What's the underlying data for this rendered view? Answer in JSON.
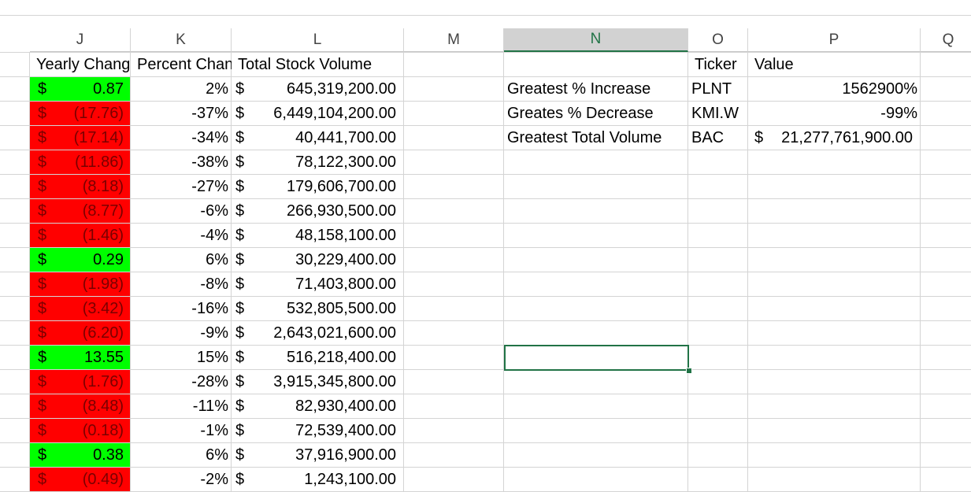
{
  "columns": [
    "J",
    "K",
    "L",
    "M",
    "N",
    "O",
    "P",
    "Q"
  ],
  "selected_column": "N",
  "headers": {
    "yearly_change": "Yearly Change",
    "percent_change": "Percent Change",
    "total_volume": "Total Stock Volume",
    "ticker": "Ticker",
    "value": "Value"
  },
  "rows": [
    {
      "sign": "positive",
      "yearly": "0.87",
      "percent": "2%",
      "volume": "645,319,200.00"
    },
    {
      "sign": "negative",
      "yearly": "(17.76)",
      "percent": "-37%",
      "volume": "6,449,104,200.00"
    },
    {
      "sign": "negative",
      "yearly": "(17.14)",
      "percent": "-34%",
      "volume": "40,441,700.00"
    },
    {
      "sign": "negative",
      "yearly": "(11.86)",
      "percent": "-38%",
      "volume": "78,122,300.00"
    },
    {
      "sign": "negative",
      "yearly": "(8.18)",
      "percent": "-27%",
      "volume": "179,606,700.00"
    },
    {
      "sign": "negative",
      "yearly": "(8.77)",
      "percent": "-6%",
      "volume": "266,930,500.00"
    },
    {
      "sign": "negative",
      "yearly": "(1.46)",
      "percent": "-4%",
      "volume": "48,158,100.00"
    },
    {
      "sign": "positive",
      "yearly": "0.29",
      "percent": "6%",
      "volume": "30,229,400.00"
    },
    {
      "sign": "negative",
      "yearly": "(1.98)",
      "percent": "-8%",
      "volume": "71,403,800.00"
    },
    {
      "sign": "negative",
      "yearly": "(3.42)",
      "percent": "-16%",
      "volume": "532,805,500.00"
    },
    {
      "sign": "negative",
      "yearly": "(6.20)",
      "percent": "-9%",
      "volume": "2,643,021,600.00"
    },
    {
      "sign": "positive",
      "yearly": "13.55",
      "percent": "15%",
      "volume": "516,218,400.00"
    },
    {
      "sign": "negative",
      "yearly": "(1.76)",
      "percent": "-28%",
      "volume": "3,915,345,800.00"
    },
    {
      "sign": "negative",
      "yearly": "(8.48)",
      "percent": "-11%",
      "volume": "82,930,400.00"
    },
    {
      "sign": "negative",
      "yearly": "(0.18)",
      "percent": "-1%",
      "volume": "72,539,400.00"
    },
    {
      "sign": "positive",
      "yearly": "0.38",
      "percent": "6%",
      "volume": "37,916,900.00"
    },
    {
      "sign": "negative",
      "yearly": "(0.49)",
      "percent": "-2%",
      "volume": "1,243,100.00"
    }
  ],
  "currency_symbol": "$",
  "summary": [
    {
      "label": "Greatest % Increase",
      "ticker": "PLNT",
      "value": "1562900%",
      "currency": ""
    },
    {
      "label": "Greates % Decrease",
      "ticker": "KMI.W",
      "value": "-99%",
      "currency": ""
    },
    {
      "label": "Greatest Total Volume",
      "ticker": "BAC",
      "value": "21,277,761,900.00",
      "currency": "$"
    }
  ],
  "colors": {
    "positive_fill": "#00ff00",
    "negative_fill": "#ff0000",
    "negative_text": "#7a0000",
    "positive_text": "#000000",
    "selection": "#217346"
  }
}
